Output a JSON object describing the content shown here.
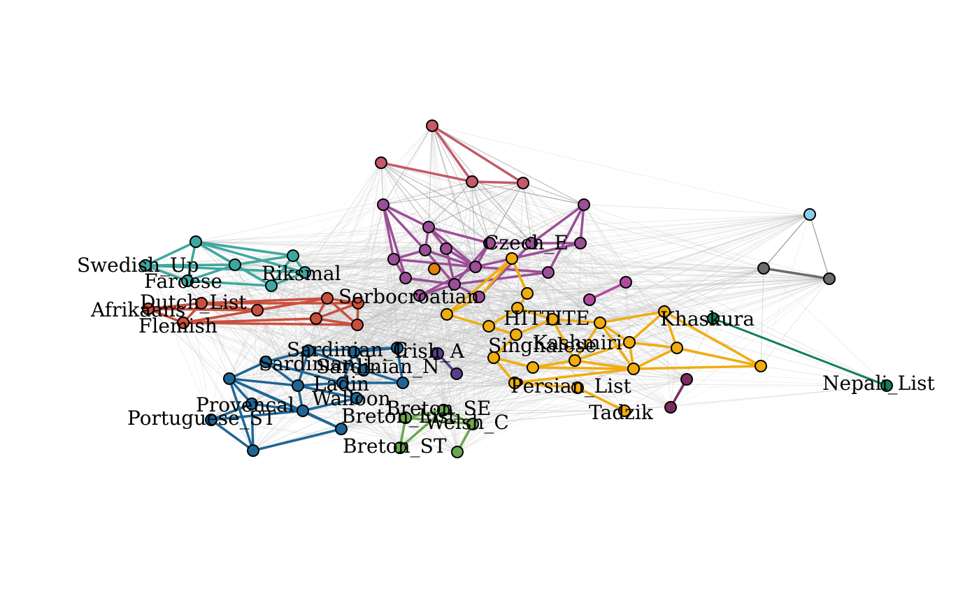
{
  "figure": {
    "type": "network",
    "edge_colors": {
      "background": "#bdbdbd"
    },
    "communities": [
      {
        "id": "red",
        "color": "#c45a6a"
      },
      {
        "id": "purple",
        "color": "#9b4f96"
      },
      {
        "id": "teal",
        "color": "#3ea8a0"
      },
      {
        "id": "redorange",
        "color": "#c9503e"
      },
      {
        "id": "blue",
        "color": "#1f6694"
      },
      {
        "id": "green",
        "color": "#6aa84f"
      },
      {
        "id": "yellow",
        "color": "#efad0e"
      },
      {
        "id": "maroon",
        "color": "#7a2d5e"
      },
      {
        "id": "darkgreen",
        "color": "#128052"
      },
      {
        "id": "gray",
        "color": "#6b6b6b"
      },
      {
        "id": "lightblue",
        "color": "#87ceeb"
      },
      {
        "id": "orange",
        "color": "#e6820a"
      },
      {
        "id": "indigo",
        "color": "#5a3d8a"
      },
      {
        "id": "magenta",
        "color": "#b04aa0"
      }
    ],
    "labels": {
      "swedish_up": "Swedish_Up",
      "faroese": "Faroese",
      "riksmal": "Riksmal",
      "afrikaans": "Afrikaans",
      "dutch_list": "Dutch_List",
      "flemish": "Flemish",
      "serbocroatian": "Serbocroatian",
      "czech_e": "Czech_E",
      "hittite": "HITTITE",
      "khaskura": "Khaskura",
      "nepali_list": "Nepali_List",
      "sardinian_c": "Sardinian_C",
      "irish_a": "Irish_A",
      "sardinian_l": "Sardinian_L",
      "sardinian_n": "Sardinian_N",
      "singhalese": "Singhalese",
      "kashmiri": "Kashmiri",
      "ladin": "Ladin",
      "persian_list": "Persian_List",
      "walloon": "Walloon",
      "provencal": "Provencal",
      "breton_se": "Breton_SE",
      "breton_list": "Breton_List",
      "portuguese_st": "Portuguese_ST",
      "welsh_c": "Welsh_C",
      "tadzik": "Tadzik",
      "breton_st": "Breton_ST"
    }
  }
}
